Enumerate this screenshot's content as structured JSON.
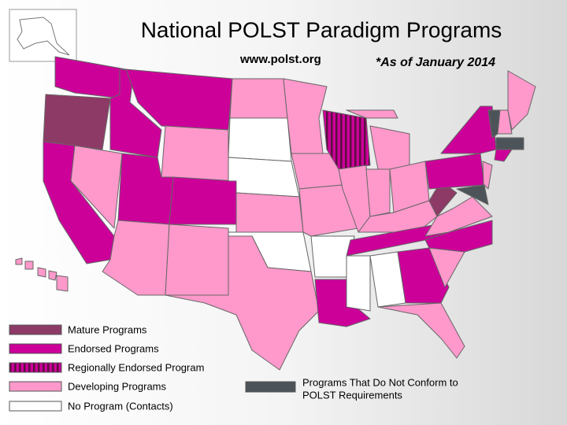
{
  "header": {
    "title": "National POLST Paradigm Programs",
    "url": "www.polst.org",
    "date_note": "*As of January 2014"
  },
  "legend": [
    {
      "label": "Mature Programs",
      "color": "#8e3a66"
    },
    {
      "label": "Endorsed Programs",
      "color": "#cc0099"
    },
    {
      "label": "Regionally Endorsed Program",
      "color": "#cc0099",
      "stripe_color": "#5a1040"
    },
    {
      "label": "Developing Programs",
      "color": "#ff99cc"
    },
    {
      "label": "No Program (Contacts)",
      "color": "#ffffff"
    },
    {
      "label": [
        "Programs That Do Not Conform to",
        "POLST Requirements"
      ],
      "color": "#4d5459"
    }
  ]
}
